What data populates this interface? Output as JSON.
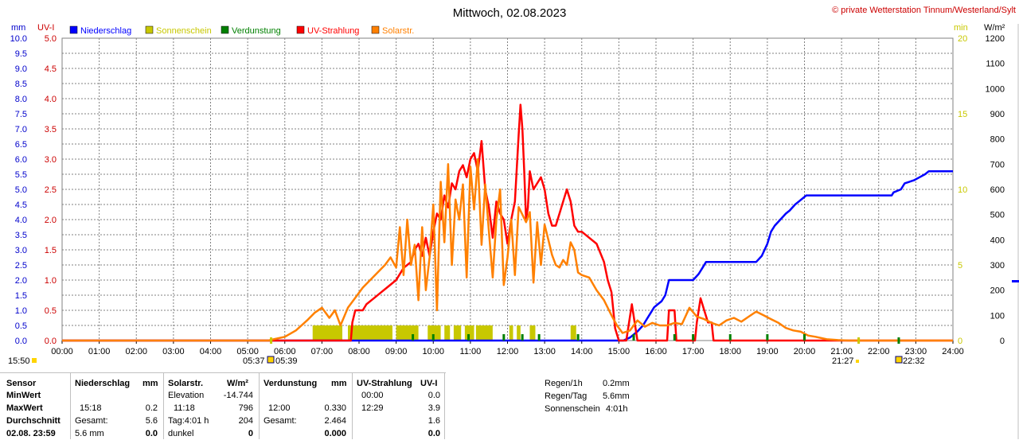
{
  "header": {
    "title": "Mittwoch, 02.08.2023",
    "copyright": "© private Wetterstation Tinnum/Westerland/Sylt",
    "left_units": [
      "mm",
      "UV-I"
    ],
    "right_units": [
      "min",
      "W/m²"
    ]
  },
  "legend": [
    {
      "label": "Niederschlag",
      "color": "#0000ff"
    },
    {
      "label": "Sonnenschein",
      "color": "#c8c800"
    },
    {
      "label": "Verdunstung",
      "color": "#008000"
    },
    {
      "label": "UV-Strahlung",
      "color": "#ff0000"
    },
    {
      "label": "Solarstr.",
      "color": "#ff8000"
    }
  ],
  "chart_data": {
    "type": "line",
    "x_unit": "time of day (h)",
    "xlim": [
      0,
      24
    ],
    "x_tick_labels": [
      "00:00",
      "01:00",
      "02:00",
      "03:00",
      "04:00",
      "05:00",
      "06:00",
      "07:00",
      "08:00",
      "09:00",
      "10:00",
      "11:00",
      "12:00",
      "13:00",
      "14:00",
      "15:00",
      "16:00",
      "17:00",
      "18:00",
      "19:00",
      "20:00",
      "21:00",
      "22:00",
      "23:00",
      "24:00"
    ],
    "axes": {
      "mm": {
        "range": [
          0,
          10
        ],
        "ticks": [
          "0.0",
          "0.5",
          "1.0",
          "1.5",
          "2.0",
          "2.5",
          "3.0",
          "3.5",
          "4.0",
          "4.5",
          "5.0",
          "5.5",
          "6.0",
          "6.5",
          "7.0",
          "7.5",
          "8.0",
          "8.5",
          "9.0",
          "9.5",
          "10.0"
        ],
        "color": "#0000cc"
      },
      "uv": {
        "range": [
          0,
          5
        ],
        "ticks": [
          "0.0",
          "0.5",
          "1.0",
          "1.5",
          "2.0",
          "2.5",
          "3.0",
          "3.5",
          "4.0",
          "4.5",
          "5.0"
        ],
        "color": "#cc0000"
      },
      "min": {
        "range": [
          0,
          20
        ],
        "ticks": [
          "0",
          "5",
          "10",
          "15",
          "20"
        ],
        "color": "#c8c800"
      },
      "wm2": {
        "range": [
          0,
          1200
        ],
        "ticks": [
          "0",
          "100",
          "200",
          "300",
          "400",
          "500",
          "600",
          "700",
          "800",
          "900",
          "1000",
          "1100",
          "1200"
        ],
        "color": "#000000"
      }
    },
    "grid": true,
    "series": [
      {
        "name": "Niederschlag",
        "axis": "mm",
        "color": "#0000ff",
        "x": [
          0,
          15.12,
          15.3,
          15.5,
          15.65,
          15.75,
          15.85,
          15.95,
          16.05,
          16.15,
          16.25,
          16.35,
          17.0,
          17.15,
          17.25,
          17.35,
          18.7,
          18.85,
          19.0,
          19.1,
          19.2,
          19.35,
          19.5,
          19.6,
          19.75,
          19.85,
          19.95,
          20.05,
          22.35,
          22.4,
          22.6,
          22.7,
          22.95,
          23.1,
          23.25,
          23.35,
          24.0
        ],
        "y": [
          0,
          0,
          0.1,
          0.3,
          0.5,
          0.7,
          0.9,
          1.1,
          1.2,
          1.3,
          1.5,
          2.0,
          2.0,
          2.2,
          2.4,
          2.6,
          2.6,
          2.8,
          3.2,
          3.6,
          3.8,
          4.0,
          4.2,
          4.3,
          4.5,
          4.6,
          4.7,
          4.8,
          4.8,
          4.9,
          5.0,
          5.2,
          5.3,
          5.4,
          5.5,
          5.6,
          5.6
        ]
      },
      {
        "name": "UV-Strahlung",
        "axis": "uv",
        "color": "#ff0000",
        "x": [
          0,
          7.78,
          7.82,
          7.9,
          8.0,
          8.1,
          8.2,
          8.4,
          8.6,
          8.8,
          9.0,
          9.2,
          9.4,
          9.5,
          9.6,
          9.7,
          9.8,
          9.9,
          10.0,
          10.1,
          10.2,
          10.3,
          10.4,
          10.5,
          10.6,
          10.7,
          10.8,
          10.9,
          11.0,
          11.1,
          11.2,
          11.3,
          11.4,
          11.5,
          11.6,
          11.7,
          11.8,
          11.9,
          12.0,
          12.1,
          12.2,
          12.3,
          12.35,
          12.4,
          12.45,
          12.5,
          12.55,
          12.6,
          12.7,
          12.8,
          12.9,
          13.0,
          13.1,
          13.2,
          13.3,
          13.4,
          13.5,
          13.6,
          13.7,
          13.8,
          13.9,
          14.0,
          14.2,
          14.4,
          14.6,
          14.7,
          14.8,
          14.85,
          14.9,
          15.0,
          15.1,
          15.2,
          15.35,
          15.5,
          15.55,
          15.6,
          16.3,
          16.35,
          16.5,
          16.55,
          16.6,
          17.05,
          17.1,
          17.2,
          17.3,
          17.4,
          17.5,
          17.55,
          24.0
        ],
        "y": [
          0,
          0,
          0.3,
          0.5,
          0.5,
          0.5,
          0.6,
          0.7,
          0.8,
          0.9,
          1.0,
          1.2,
          1.3,
          1.5,
          1.6,
          1.4,
          1.7,
          1.4,
          1.8,
          2.1,
          2.0,
          2.4,
          2.2,
          2.6,
          2.5,
          2.8,
          2.9,
          2.7,
          3.0,
          3.1,
          2.8,
          3.3,
          2.5,
          2.2,
          1.7,
          2.3,
          2.1,
          2.0,
          1.6,
          2.0,
          2.3,
          3.4,
          3.9,
          3.5,
          2.8,
          2.0,
          2.2,
          2.8,
          2.5,
          2.6,
          2.7,
          2.5,
          2.1,
          1.9,
          1.9,
          2.1,
          2.3,
          2.5,
          2.3,
          1.9,
          1.8,
          1.8,
          1.7,
          1.6,
          1.3,
          1.0,
          0.8,
          0.5,
          0.2,
          0.0,
          0.0,
          0.0,
          0.6,
          0.0,
          0.0,
          0.0,
          0.0,
          0.5,
          0.5,
          0.0,
          0.0,
          0.0,
          0.3,
          0.7,
          0.5,
          0.3,
          0.3,
          0.0,
          0.0
        ]
      },
      {
        "name": "Solarstr.",
        "axis": "wm2",
        "color": "#ff8000",
        "x": [
          0,
          5.55,
          5.7,
          6.0,
          6.3,
          6.6,
          6.8,
          7.0,
          7.2,
          7.35,
          7.5,
          7.7,
          7.9,
          8.1,
          8.3,
          8.5,
          8.7,
          8.85,
          9.0,
          9.1,
          9.2,
          9.3,
          9.4,
          9.5,
          9.6,
          9.7,
          9.8,
          9.9,
          10.0,
          10.1,
          10.2,
          10.3,
          10.4,
          10.5,
          10.6,
          10.7,
          10.8,
          10.9,
          11.0,
          11.1,
          11.2,
          11.3,
          11.4,
          11.5,
          11.6,
          11.7,
          11.8,
          11.9,
          12.0,
          12.1,
          12.2,
          12.3,
          12.4,
          12.5,
          12.6,
          12.7,
          12.8,
          12.9,
          13.0,
          13.1,
          13.2,
          13.3,
          13.4,
          13.5,
          13.6,
          13.7,
          13.8,
          13.9,
          14.0,
          14.2,
          14.4,
          14.6,
          14.8,
          14.95,
          15.1,
          15.3,
          15.5,
          15.7,
          15.9,
          16.1,
          16.3,
          16.5,
          16.7,
          16.9,
          17.1,
          17.3,
          17.5,
          17.7,
          17.9,
          18.1,
          18.3,
          18.5,
          18.7,
          18.9,
          19.1,
          19.3,
          19.5,
          19.7,
          19.9,
          20.1,
          20.3,
          20.6,
          20.9,
          21.2,
          21.5,
          24.0
        ],
        "y": [
          0,
          0,
          5,
          15,
          40,
          80,
          110,
          130,
          90,
          120,
          60,
          130,
          170,
          210,
          240,
          270,
          300,
          330,
          290,
          450,
          260,
          480,
          300,
          380,
          160,
          450,
          200,
          330,
          540,
          120,
          630,
          390,
          700,
          300,
          560,
          480,
          620,
          250,
          690,
          520,
          720,
          380,
          620,
          430,
          250,
          480,
          600,
          220,
          330,
          480,
          260,
          530,
          500,
          470,
          510,
          230,
          470,
          300,
          460,
          400,
          340,
          300,
          290,
          320,
          300,
          390,
          360,
          270,
          260,
          250,
          200,
          160,
          100,
          60,
          30,
          40,
          80,
          55,
          70,
          60,
          60,
          70,
          65,
          130,
          95,
          85,
          70,
          60,
          80,
          90,
          75,
          95,
          115,
          100,
          85,
          70,
          50,
          40,
          35,
          20,
          15,
          5,
          2,
          0,
          0,
          0
        ]
      }
    ],
    "sunshine_blocks": {
      "name": "Sonnenschein",
      "axis": "min",
      "color": "#c8c800",
      "intervals": [
        [
          6.75,
          7.55,
          1.0
        ],
        [
          7.7,
          8.9,
          1.0
        ],
        [
          9.0,
          9.6,
          1.0
        ],
        [
          9.85,
          10.2,
          1.0
        ],
        [
          10.3,
          10.45,
          1.0
        ],
        [
          10.55,
          10.75,
          1.0
        ],
        [
          10.85,
          11.1,
          1.0
        ],
        [
          11.15,
          11.6,
          1.0
        ],
        [
          12.05,
          12.15,
          1.0
        ],
        [
          12.25,
          12.35,
          1.0
        ],
        [
          12.6,
          12.75,
          1.0
        ],
        [
          13.7,
          13.85,
          1.0
        ]
      ]
    },
    "evaporation_marks": {
      "name": "Verdunstung",
      "color": "#008000",
      "x": [
        9.45,
        10.0,
        10.95,
        11.9,
        12.4,
        12.85,
        13.9,
        15.4,
        16.5,
        17.0,
        18.0,
        19.0,
        20.0
      ]
    },
    "below_axis_labels": {
      "left_time": "15:50",
      "sunrise_a": "05:37",
      "sunrise_b": "05:39",
      "sunset_a": "21:27",
      "sunset_b": "22:32"
    }
  },
  "table": {
    "col_sensor": {
      "header": "Sensor",
      "rows": [
        "MinWert",
        "MaxWert",
        "Durchschnitt",
        "02.08. 23:59"
      ]
    },
    "col_rain": {
      "header": "Niederschlag",
      "unit": "mm",
      "min": [
        "",
        ""
      ],
      "max": [
        "15:18",
        "0.2"
      ],
      "avg": [
        "Gesamt:",
        "5.6"
      ],
      "last": [
        "5.6 mm",
        "0.0"
      ]
    },
    "col_solar": {
      "header": "Solarstr.",
      "unit": "W/m²",
      "min": [
        "Elevation",
        "-14.744"
      ],
      "max": [
        "11:18",
        "796"
      ],
      "avg": [
        "Tag:4:01 h",
        "204"
      ],
      "last": [
        "dunkel",
        "0"
      ]
    },
    "col_evap": {
      "header": "Verdunstung",
      "unit": "mm",
      "min": [
        "",
        ""
      ],
      "max": [
        "12:00",
        "0.330"
      ],
      "avg": [
        "Gesamt:",
        "2.464"
      ],
      "last": [
        "",
        "0.000"
      ]
    },
    "col_uv": {
      "header": "UV-Strahlung",
      "unit": "UV-I",
      "min": [
        "00:00",
        "0.0"
      ],
      "max": [
        "12:29",
        "3.9"
      ],
      "avg": [
        "",
        "1.6"
      ],
      "last": [
        "",
        "0.0"
      ]
    },
    "summary": [
      {
        "label": "Regen/1h",
        "value": "0.2mm"
      },
      {
        "label": "Regen/Tag",
        "value": "5.6mm"
      },
      {
        "label": "Sonnenschein",
        "value": "4:01h"
      }
    ]
  }
}
